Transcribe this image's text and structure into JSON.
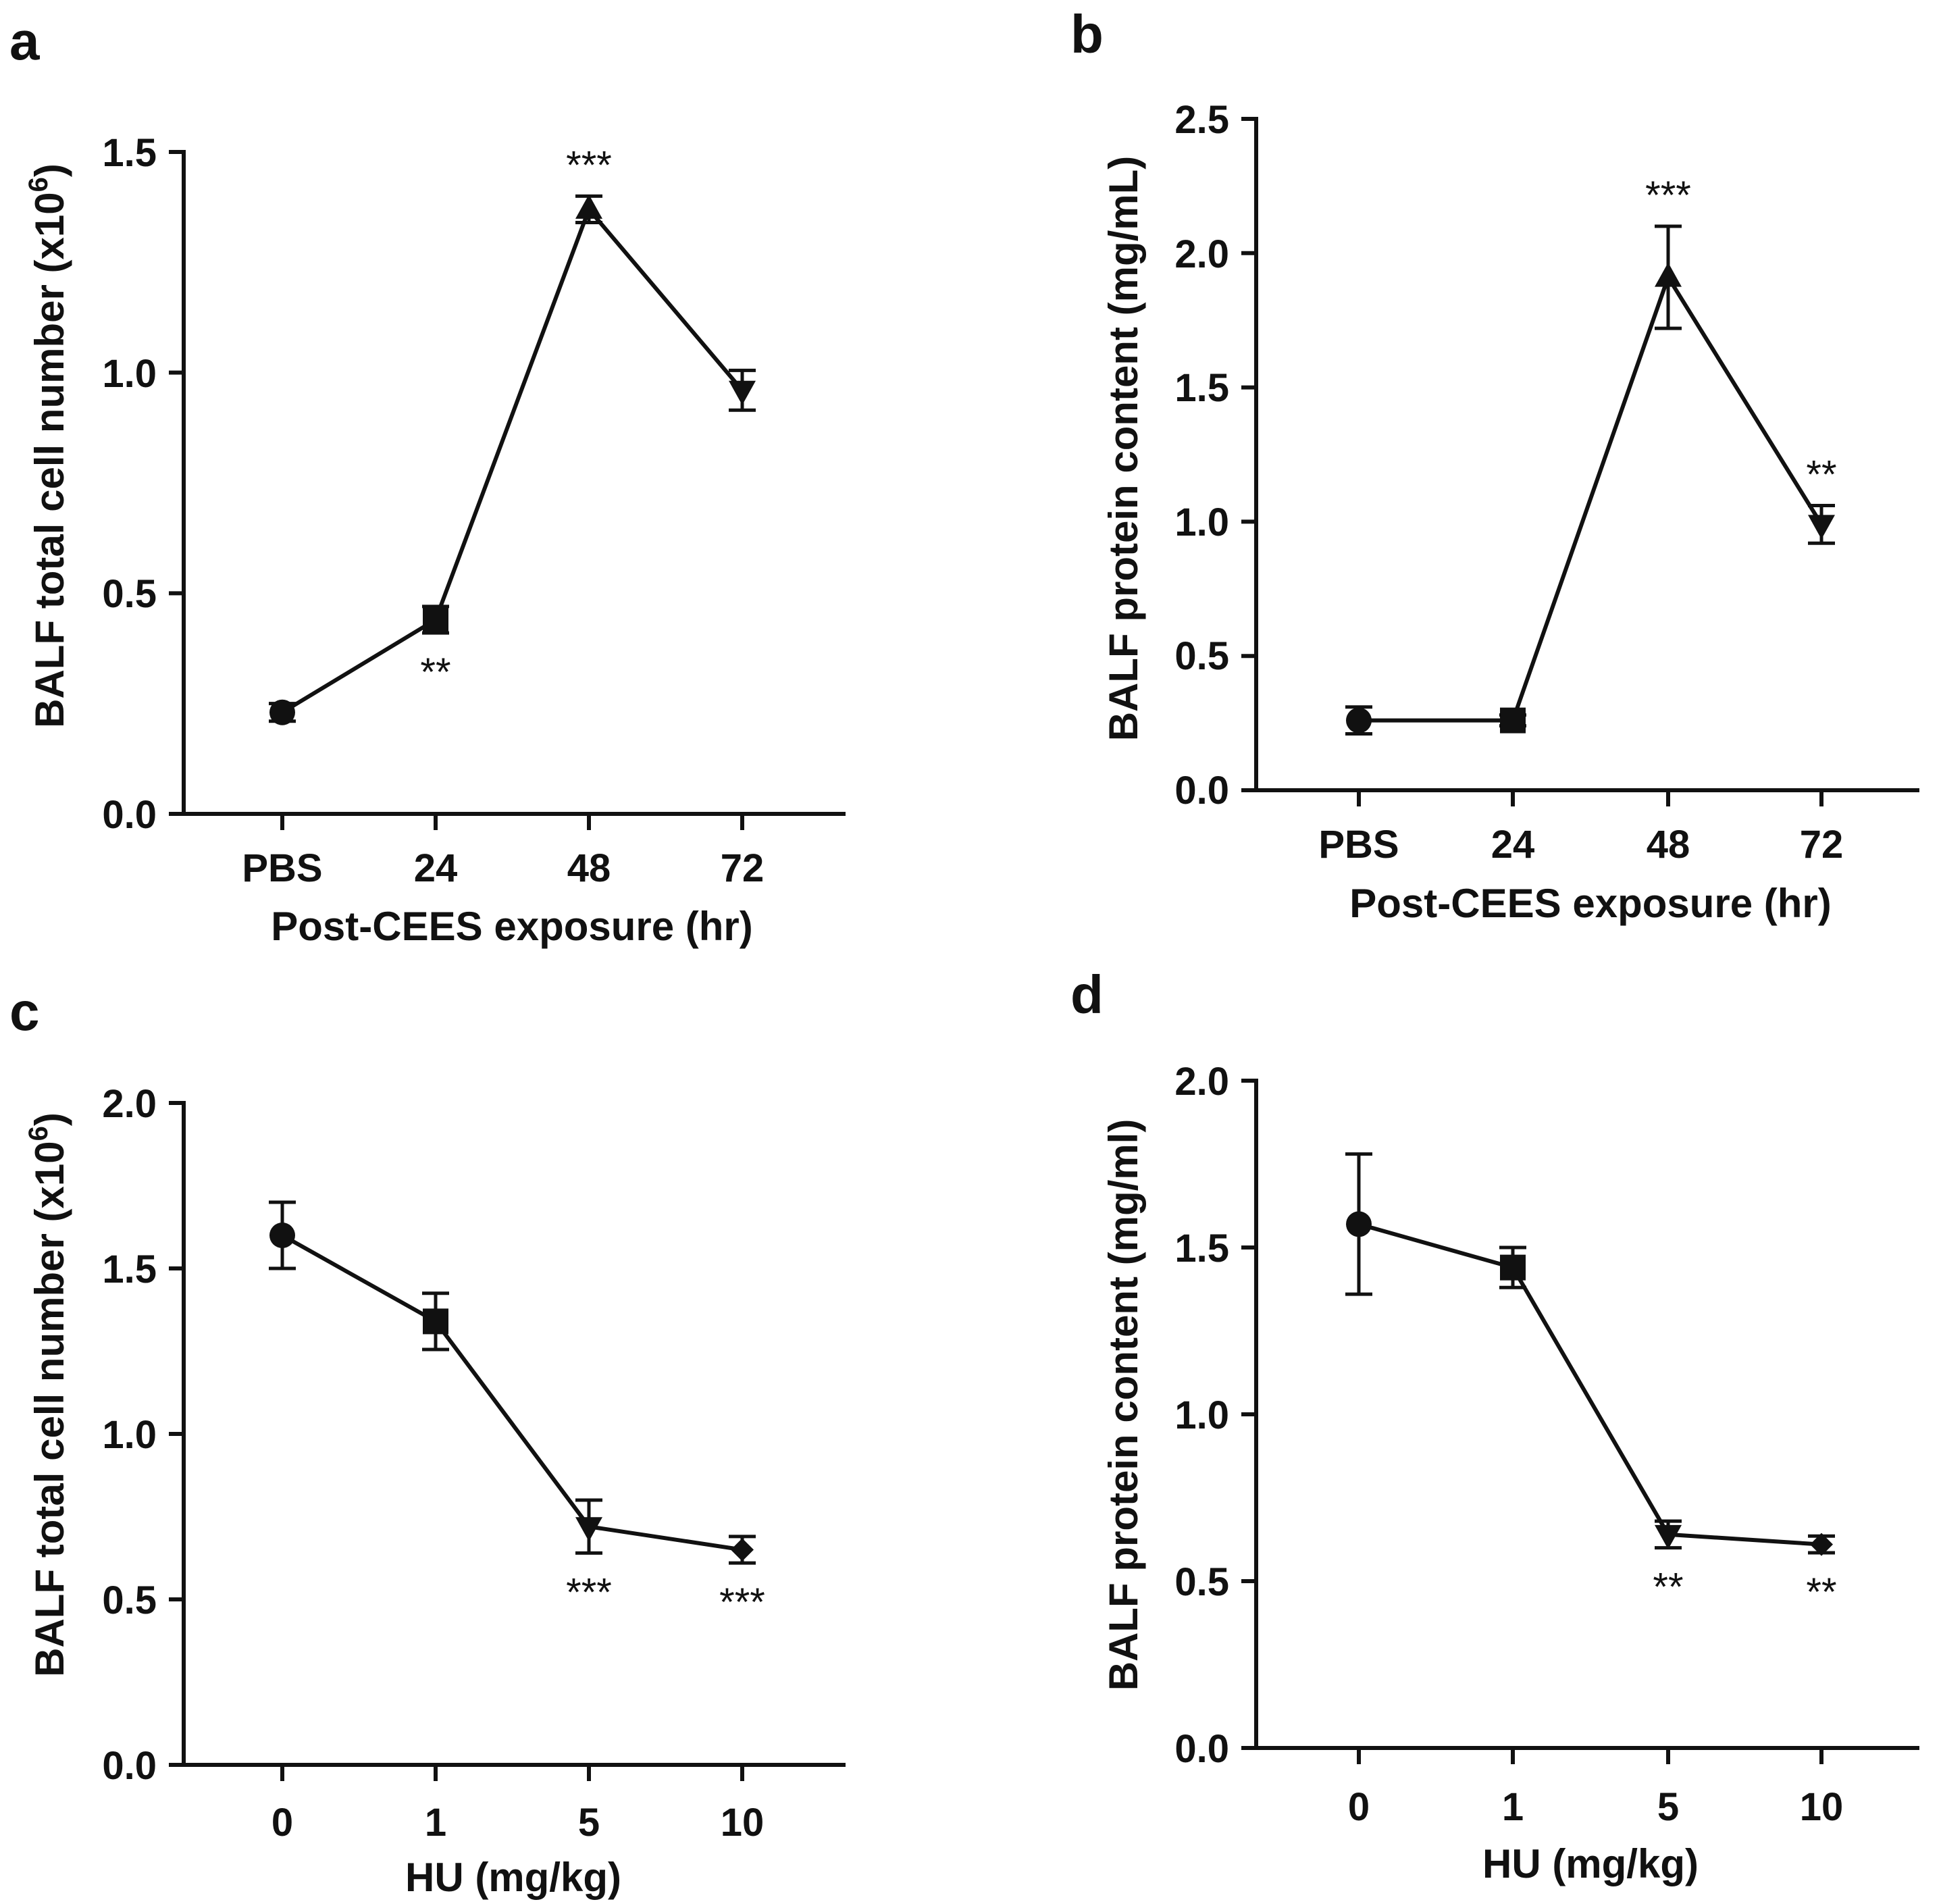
{
  "figure": {
    "panels": [
      "a",
      "b",
      "c",
      "d"
    ]
  },
  "chart_data": [
    {
      "panel": "a",
      "type": "line",
      "categories": [
        "PBS",
        "24",
        "48",
        "72"
      ],
      "values": [
        0.23,
        0.44,
        1.37,
        0.96
      ],
      "errors": [
        0.02,
        0.03,
        0.03,
        0.045
      ],
      "markers": [
        "circle",
        "square",
        "triangle-up",
        "triangle-down"
      ],
      "significance": [
        "",
        "**",
        "***",
        ""
      ],
      "significance_position": [
        "",
        "below",
        "above",
        ""
      ],
      "xlabel": "Post-CEES exposure (hr)",
      "ylabel": "BALF total cell number (x10",
      "ylabel_superscript": "6",
      "ylabel_close": ")",
      "ylim": [
        0,
        1.5
      ],
      "yticks": [
        0.0,
        0.5,
        1.0,
        1.5
      ],
      "ytick_labels": [
        "0.0",
        "0.5",
        "1.0",
        "1.5"
      ]
    },
    {
      "panel": "b",
      "type": "line",
      "categories": [
        "PBS",
        "24",
        "48",
        "72"
      ],
      "values": [
        0.26,
        0.26,
        1.91,
        0.99
      ],
      "errors": [
        0.05,
        0.02,
        0.19,
        0.07
      ],
      "markers": [
        "circle",
        "square",
        "triangle-up",
        "triangle-down"
      ],
      "significance": [
        "",
        "",
        "***",
        "**"
      ],
      "significance_position": [
        "",
        "",
        "above",
        "above"
      ],
      "xlabel": "Post-CEES exposure (hr)",
      "ylabel": "BALF protein content (mg/mL)",
      "ylim": [
        0,
        2.5
      ],
      "yticks": [
        0.0,
        0.5,
        1.0,
        1.5,
        2.0,
        2.5
      ],
      "ytick_labels": [
        "0.0",
        "0.5",
        "1.0",
        "1.5",
        "2.0",
        "2.5"
      ]
    },
    {
      "panel": "c",
      "type": "line",
      "categories": [
        "0",
        "1",
        "5",
        "10"
      ],
      "values": [
        1.6,
        1.34,
        0.72,
        0.65
      ],
      "errors": [
        0.1,
        0.085,
        0.08,
        0.04
      ],
      "markers": [
        "circle",
        "square",
        "triangle-down",
        "diamond"
      ],
      "significance": [
        "",
        "",
        "***",
        "***"
      ],
      "significance_position": [
        "",
        "",
        "below",
        "below"
      ],
      "xlabel": "HU (mg/kg)",
      "ylabel": "BALF total cell number (x10",
      "ylabel_superscript": "6",
      "ylabel_close": ")",
      "ylim": [
        0,
        2.0
      ],
      "yticks": [
        0.0,
        0.5,
        1.0,
        1.5,
        2.0
      ],
      "ytick_labels": [
        "0.0",
        "0.5",
        "1.0",
        "1.5",
        "2.0"
      ]
    },
    {
      "panel": "d",
      "type": "line",
      "categories": [
        "0",
        "1",
        "5",
        "10"
      ],
      "values": [
        1.57,
        1.44,
        0.64,
        0.61
      ],
      "errors": [
        0.21,
        0.06,
        0.04,
        0.025
      ],
      "markers": [
        "circle",
        "square",
        "triangle-down",
        "diamond"
      ],
      "significance": [
        "",
        "",
        "**",
        "**"
      ],
      "significance_position": [
        "",
        "",
        "below",
        "below"
      ],
      "xlabel": "HU (mg/kg)",
      "ylabel": "BALF protein content (mg/ml)",
      "ylim": [
        0,
        2.0
      ],
      "yticks": [
        0.0,
        0.5,
        1.0,
        1.5,
        2.0
      ],
      "ytick_labels": [
        "0.0",
        "0.5",
        "1.0",
        "1.5",
        "2.0"
      ]
    }
  ]
}
